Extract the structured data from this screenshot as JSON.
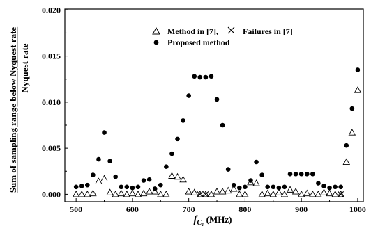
{
  "chart_data": {
    "type": "scatter",
    "ylabel_line1": "Sum of sampling range below Nyquest rate",
    "ylabel_line2": "Nyquest rate",
    "xlabel_main": "f",
    "xlabel_sub": "C₁",
    "xlabel_unit": "(MHz)",
    "xlim": [
      480,
      1010
    ],
    "ylim": [
      -0.0008,
      0.0201
    ],
    "xticks": [
      500,
      600,
      700,
      800,
      900,
      1000
    ],
    "xtick_labels": [
      "500",
      "600",
      "700",
      "800",
      "900",
      "1000"
    ],
    "yticks": [
      0.0,
      0.005,
      0.01,
      0.015,
      0.02
    ],
    "ytick_labels": [
      "0.000",
      "0.005",
      "0.010",
      "0.015",
      "0.020"
    ],
    "legend_placement": "top-center",
    "series": [
      {
        "name": "Method in [7],",
        "marker": "triangle",
        "color": "#000000",
        "x": [
          500,
          510,
          520,
          530,
          540,
          550,
          560,
          570,
          580,
          590,
          600,
          610,
          620,
          630,
          640,
          650,
          660,
          670,
          680,
          690,
          700,
          710,
          720,
          730,
          740,
          750,
          760,
          770,
          780,
          790,
          800,
          810,
          820,
          830,
          840,
          850,
          860,
          870,
          880,
          890,
          900,
          910,
          920,
          930,
          940,
          950,
          960,
          970,
          980,
          990,
          1000
        ],
        "y": [
          0.0,
          0.0,
          0.0,
          0.0001,
          0.0014,
          0.0017,
          0.0002,
          0.0,
          0.0001,
          0.0,
          0.0001,
          0.0,
          0.0001,
          0.0003,
          0.0003,
          0.0,
          0.0,
          0.002,
          0.0019,
          0.0016,
          0.0003,
          0.0002,
          0.0,
          0.0,
          0.0,
          0.0003,
          0.0003,
          0.0004,
          0.0006,
          0.0,
          0.0,
          0.0013,
          0.0012,
          0.0,
          0.0001,
          0.0,
          0.0002,
          0.0,
          0.0005,
          0.0003,
          0.0,
          0.0001,
          0.0,
          0.0,
          0.0002,
          0.0001,
          0.0,
          0.0,
          0.0035,
          0.0067,
          0.0113
        ]
      },
      {
        "name": "Failures in [7]",
        "marker": "x",
        "color": "#000000",
        "x": [
          720,
          730,
          970
        ],
        "y": [
          0.0,
          0.0,
          0.0
        ]
      },
      {
        "name": "Proposed method",
        "marker": "circle",
        "color": "#000000",
        "x": [
          500,
          510,
          520,
          530,
          540,
          550,
          560,
          570,
          580,
          590,
          600,
          610,
          620,
          630,
          640,
          650,
          660,
          670,
          680,
          690,
          700,
          710,
          720,
          730,
          740,
          750,
          760,
          770,
          780,
          790,
          800,
          810,
          820,
          830,
          840,
          850,
          860,
          870,
          880,
          890,
          900,
          910,
          920,
          930,
          940,
          950,
          960,
          970,
          980,
          990,
          1000
        ],
        "y": [
          0.0008,
          0.0009,
          0.001,
          0.0021,
          0.0038,
          0.0067,
          0.0036,
          0.0019,
          0.0008,
          0.0008,
          0.0007,
          0.0008,
          0.0015,
          0.0016,
          0.0006,
          0.001,
          0.003,
          0.0044,
          0.006,
          0.008,
          0.0107,
          0.0128,
          0.0127,
          0.0127,
          0.0128,
          0.0103,
          0.0075,
          0.0027,
          0.001,
          0.0007,
          0.0008,
          0.0015,
          0.0035,
          0.0021,
          0.0008,
          0.0008,
          0.0007,
          0.0008,
          0.0022,
          0.0022,
          0.0022,
          0.0022,
          0.0022,
          0.0012,
          0.0009,
          0.0007,
          0.0008,
          0.0008,
          0.0053,
          0.0093,
          0.0135
        ]
      }
    ]
  }
}
